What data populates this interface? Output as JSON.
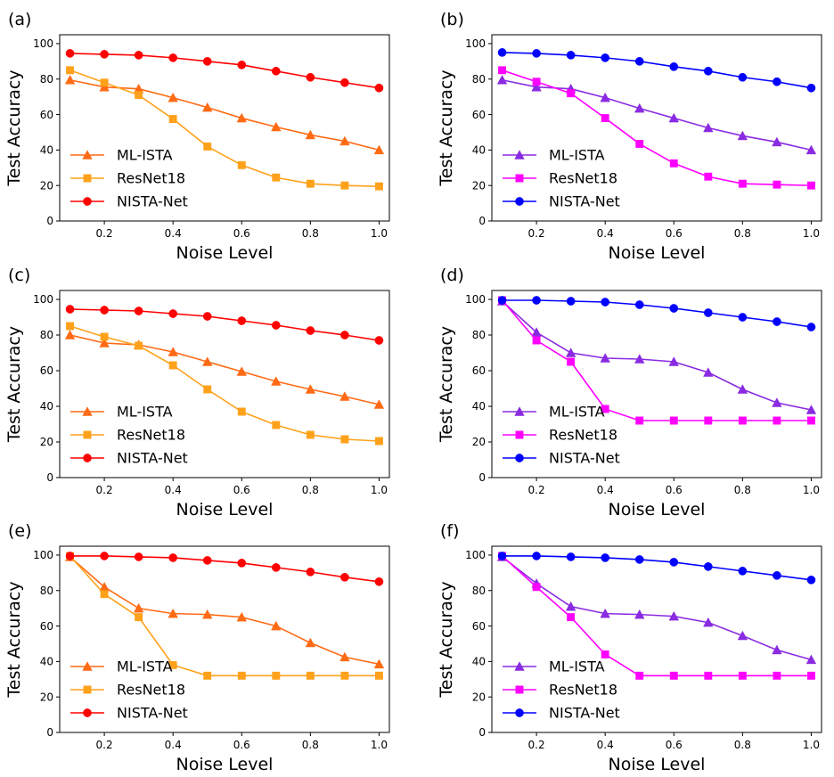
{
  "figure": {
    "colors": {
      "warm": {
        "ml_ista": "#ff6a14",
        "resnet": "#ffa11a",
        "nista": "#ff0000"
      },
      "cool": {
        "ml_ista": "#8a2be2",
        "resnet": "#ff00ff",
        "nista": "#0000ff"
      }
    }
  },
  "chart_data": [
    {
      "panel": "(a)",
      "type": "line",
      "palette": "warm",
      "xlabel": "Noise Level",
      "ylabel": "Test Accuracy",
      "x": [
        0.1,
        0.2,
        0.3,
        0.4,
        0.5,
        0.6,
        0.7,
        0.8,
        0.9,
        1.0
      ],
      "xticks": [
        "0.2",
        "0.4",
        "0.6",
        "0.8",
        "1.0"
      ],
      "yticks": [
        "0",
        "20",
        "40",
        "60",
        "80",
        "100"
      ],
      "xlim": [
        0.07,
        1.03
      ],
      "ylim": [
        0,
        105
      ],
      "series": [
        {
          "name": "ML-ISTA",
          "marker": "triangle",
          "values": [
            79.5,
            75.5,
            74.5,
            69.5,
            64,
            58,
            53,
            48.5,
            45,
            40
          ]
        },
        {
          "name": "ResNet18",
          "marker": "square",
          "values": [
            85,
            78,
            71,
            57.5,
            42,
            31.5,
            24.5,
            21,
            20,
            19.5
          ]
        },
        {
          "name": "NISTA-Net",
          "marker": "circle",
          "values": [
            94.5,
            94,
            93.5,
            92,
            90,
            88,
            84.5,
            81,
            78,
            75
          ]
        }
      ]
    },
    {
      "panel": "(b)",
      "type": "line",
      "palette": "cool",
      "xlabel": "Noise Level",
      "ylabel": "Test Accuracy",
      "x": [
        0.1,
        0.2,
        0.3,
        0.4,
        0.5,
        0.6,
        0.7,
        0.8,
        0.9,
        1.0
      ],
      "xticks": [
        "0.2",
        "0.4",
        "0.6",
        "0.8",
        "1.0"
      ],
      "yticks": [
        "0",
        "20",
        "40",
        "60",
        "80",
        "100"
      ],
      "xlim": [
        0.07,
        1.03
      ],
      "ylim": [
        0,
        105
      ],
      "series": [
        {
          "name": "ML-ISTA",
          "marker": "triangle",
          "values": [
            79.5,
            75.5,
            74.5,
            69.5,
            63.5,
            58,
            52.5,
            48,
            44.5,
            40
          ]
        },
        {
          "name": "ResNet18",
          "marker": "square",
          "values": [
            85,
            78.5,
            72,
            58,
            43.5,
            32.5,
            25,
            21,
            20.5,
            20
          ]
        },
        {
          "name": "NISTA-Net",
          "marker": "circle",
          "values": [
            95,
            94.5,
            93.5,
            92,
            90,
            87,
            84.5,
            81,
            78.5,
            75
          ]
        }
      ]
    },
    {
      "panel": "(c)",
      "type": "line",
      "palette": "warm",
      "xlabel": "Noise Level",
      "ylabel": "Test Accuracy",
      "x": [
        0.1,
        0.2,
        0.3,
        0.4,
        0.5,
        0.6,
        0.7,
        0.8,
        0.9,
        1.0
      ],
      "xticks": [
        "0.2",
        "0.4",
        "0.6",
        "0.8",
        "1.0"
      ],
      "yticks": [
        "0",
        "20",
        "40",
        "60",
        "80",
        "100"
      ],
      "xlim": [
        0.07,
        1.03
      ],
      "ylim": [
        0,
        105
      ],
      "series": [
        {
          "name": "ML-ISTA",
          "marker": "triangle",
          "values": [
            80,
            75.5,
            74.5,
            70.5,
            65,
            59.5,
            54,
            49.5,
            45.5,
            41
          ]
        },
        {
          "name": "ResNet18",
          "marker": "square",
          "values": [
            85,
            79,
            74,
            63,
            49.5,
            37,
            29.5,
            24,
            21.5,
            20.5
          ]
        },
        {
          "name": "NISTA-Net",
          "marker": "circle",
          "values": [
            94.5,
            94,
            93.5,
            92,
            90.5,
            88,
            85.5,
            82.5,
            80,
            77
          ]
        }
      ]
    },
    {
      "panel": "(d)",
      "type": "line",
      "palette": "cool",
      "xlabel": "Noise Level",
      "ylabel": "Test Accuracy",
      "x": [
        0.1,
        0.2,
        0.3,
        0.4,
        0.5,
        0.6,
        0.7,
        0.8,
        0.9,
        1.0
      ],
      "xticks": [
        "0.2",
        "0.4",
        "0.6",
        "0.8",
        "1.0"
      ],
      "yticks": [
        "0",
        "20",
        "40",
        "60",
        "80",
        "100"
      ],
      "xlim": [
        0.07,
        1.03
      ],
      "ylim": [
        0,
        105
      ],
      "series": [
        {
          "name": "ML-ISTA",
          "marker": "triangle",
          "values": [
            99,
            81.5,
            70,
            67,
            66.5,
            65,
            59,
            49.5,
            42,
            38
          ]
        },
        {
          "name": "ResNet18",
          "marker": "square",
          "values": [
            99.5,
            77,
            65,
            38.5,
            32,
            32,
            32,
            32,
            32,
            32
          ]
        },
        {
          "name": "NISTA-Net",
          "marker": "circle",
          "values": [
            99.5,
            99.5,
            99,
            98.5,
            97,
            95,
            92.5,
            90,
            87.5,
            84.5
          ]
        }
      ]
    },
    {
      "panel": "(e)",
      "type": "line",
      "palette": "warm",
      "xlabel": "Noise Level",
      "ylabel": "Test Accuracy",
      "x": [
        0.1,
        0.2,
        0.3,
        0.4,
        0.5,
        0.6,
        0.7,
        0.8,
        0.9,
        1.0
      ],
      "xticks": [
        "0.2",
        "0.4",
        "0.6",
        "0.8",
        "1.0"
      ],
      "yticks": [
        "0",
        "20",
        "40",
        "60",
        "80",
        "100"
      ],
      "xlim": [
        0.07,
        1.03
      ],
      "ylim": [
        0,
        105
      ],
      "series": [
        {
          "name": "ML-ISTA",
          "marker": "triangle",
          "values": [
            99,
            82,
            70,
            67,
            66.5,
            65,
            60,
            50.5,
            42.5,
            38.5
          ]
        },
        {
          "name": "ResNet18",
          "marker": "square",
          "values": [
            99.5,
            78,
            65,
            38,
            32,
            32,
            32,
            32,
            32,
            32
          ]
        },
        {
          "name": "NISTA-Net",
          "marker": "circle",
          "values": [
            99.5,
            99.5,
            99,
            98.5,
            97,
            95.5,
            93,
            90.5,
            87.5,
            85
          ]
        }
      ]
    },
    {
      "panel": "(f)",
      "type": "line",
      "palette": "cool",
      "xlabel": "Noise Level",
      "ylabel": "Test Accuracy",
      "x": [
        0.1,
        0.2,
        0.3,
        0.4,
        0.5,
        0.6,
        0.7,
        0.8,
        0.9,
        1.0
      ],
      "xticks": [
        "0.2",
        "0.4",
        "0.6",
        "0.8",
        "1.0"
      ],
      "yticks": [
        "0",
        "20",
        "40",
        "60",
        "80",
        "100"
      ],
      "xlim": [
        0.07,
        1.03
      ],
      "ylim": [
        0,
        105
      ],
      "series": [
        {
          "name": "ML-ISTA",
          "marker": "triangle",
          "values": [
            99,
            84,
            71,
            67,
            66.5,
            65.5,
            62,
            54.5,
            46.5,
            41
          ]
        },
        {
          "name": "ResNet18",
          "marker": "square",
          "values": [
            99.5,
            82,
            65,
            44,
            32,
            32,
            32,
            32,
            32,
            32
          ]
        },
        {
          "name": "NISTA-Net",
          "marker": "circle",
          "values": [
            99.5,
            99.5,
            99,
            98.5,
            97.5,
            96,
            93.5,
            91,
            88.5,
            86
          ]
        }
      ]
    }
  ]
}
